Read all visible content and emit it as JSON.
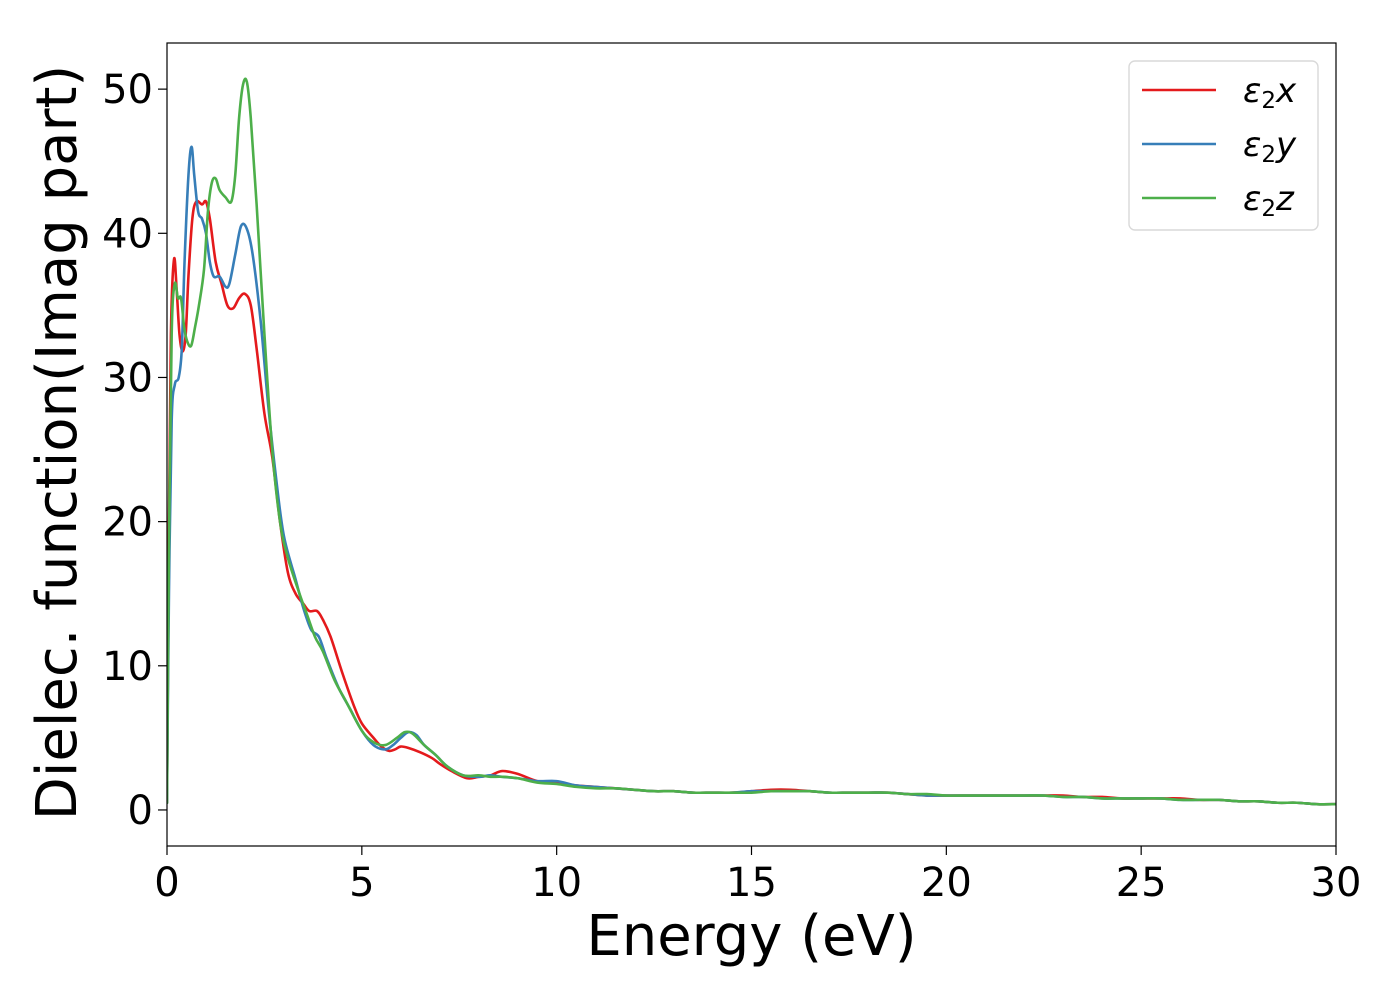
{
  "chart_data": {
    "type": "line",
    "title": "",
    "xlabel": "Energy (eV)",
    "ylabel": "Dielec. function(Imag part)",
    "xlim": [
      0,
      30
    ],
    "ylim": [
      -2.5,
      53.2
    ],
    "xticks": [
      0,
      5,
      10,
      15,
      20,
      25,
      30
    ],
    "yticks": [
      0,
      10,
      20,
      30,
      40,
      50
    ],
    "grid": false,
    "legend_position": "top-right",
    "series": [
      {
        "name": "ε₂x",
        "legend": {
          "base": "ε",
          "sub": "2",
          "var": "x"
        },
        "color": "#e41a1c",
        "points": [
          [
            0,
            0.5
          ],
          [
            0.05,
            20
          ],
          [
            0.1,
            33
          ],
          [
            0.18,
            38.2
          ],
          [
            0.25,
            36
          ],
          [
            0.32,
            33
          ],
          [
            0.4,
            31.8
          ],
          [
            0.48,
            33
          ],
          [
            0.55,
            37
          ],
          [
            0.65,
            41
          ],
          [
            0.75,
            42.2
          ],
          [
            0.9,
            42
          ],
          [
            1.0,
            42.2
          ],
          [
            1.1,
            41
          ],
          [
            1.25,
            38
          ],
          [
            1.4,
            36.5
          ],
          [
            1.55,
            35
          ],
          [
            1.7,
            34.8
          ],
          [
            1.85,
            35.5
          ],
          [
            2.0,
            35.8
          ],
          [
            2.15,
            35
          ],
          [
            2.3,
            32
          ],
          [
            2.5,
            27.5
          ],
          [
            2.7,
            24.5
          ],
          [
            2.9,
            20
          ],
          [
            3.1,
            16.5
          ],
          [
            3.3,
            15
          ],
          [
            3.5,
            14.3
          ],
          [
            3.65,
            13.8
          ],
          [
            3.85,
            13.8
          ],
          [
            4.0,
            13.2
          ],
          [
            4.2,
            12
          ],
          [
            4.5,
            9.5
          ],
          [
            4.8,
            7.2
          ],
          [
            5.0,
            6.0
          ],
          [
            5.3,
            5.0
          ],
          [
            5.5,
            4.4
          ],
          [
            5.7,
            4.1
          ],
          [
            5.85,
            4.2
          ],
          [
            6.0,
            4.4
          ],
          [
            6.2,
            4.3
          ],
          [
            6.5,
            4.0
          ],
          [
            6.8,
            3.6
          ],
          [
            7.0,
            3.2
          ],
          [
            7.3,
            2.7
          ],
          [
            7.7,
            2.2
          ],
          [
            8.0,
            2.3
          ],
          [
            8.3,
            2.4
          ],
          [
            8.6,
            2.7
          ],
          [
            9.0,
            2.5
          ],
          [
            9.5,
            2.0
          ],
          [
            10.0,
            1.9
          ],
          [
            10.5,
            1.7
          ],
          [
            11.0,
            1.6
          ],
          [
            11.5,
            1.5
          ],
          [
            12.0,
            1.4
          ],
          [
            12.5,
            1.3
          ],
          [
            13.0,
            1.3
          ],
          [
            13.5,
            1.2
          ],
          [
            14.0,
            1.2
          ],
          [
            14.5,
            1.2
          ],
          [
            15.0,
            1.3
          ],
          [
            15.5,
            1.4
          ],
          [
            16.0,
            1.4
          ],
          [
            16.5,
            1.3
          ],
          [
            17.0,
            1.2
          ],
          [
            17.5,
            1.2
          ],
          [
            18.0,
            1.2
          ],
          [
            18.5,
            1.2
          ],
          [
            19.0,
            1.1
          ],
          [
            19.5,
            1.0
          ],
          [
            20.0,
            1.0
          ],
          [
            20.5,
            1.0
          ],
          [
            21.0,
            1.0
          ],
          [
            21.5,
            1.0
          ],
          [
            22.0,
            1.0
          ],
          [
            22.5,
            1.0
          ],
          [
            23.0,
            1.0
          ],
          [
            23.5,
            0.9
          ],
          [
            24.0,
            0.9
          ],
          [
            24.5,
            0.8
          ],
          [
            25.0,
            0.8
          ],
          [
            25.5,
            0.8
          ],
          [
            26.0,
            0.8
          ],
          [
            26.5,
            0.7
          ],
          [
            27.0,
            0.7
          ],
          [
            27.5,
            0.6
          ],
          [
            28.0,
            0.6
          ],
          [
            28.5,
            0.5
          ],
          [
            29.0,
            0.5
          ],
          [
            29.5,
            0.4
          ],
          [
            30.0,
            0.4
          ]
        ]
      },
      {
        "name": "ε₂y",
        "legend": {
          "base": "ε",
          "sub": "2",
          "var": "y"
        },
        "color": "#377eb8",
        "points": [
          [
            0,
            0.5
          ],
          [
            0.05,
            15
          ],
          [
            0.12,
            27
          ],
          [
            0.2,
            29.5
          ],
          [
            0.3,
            30
          ],
          [
            0.38,
            32
          ],
          [
            0.45,
            38
          ],
          [
            0.55,
            44
          ],
          [
            0.63,
            46
          ],
          [
            0.7,
            44
          ],
          [
            0.8,
            41.5
          ],
          [
            0.9,
            41
          ],
          [
            1.0,
            40
          ],
          [
            1.1,
            38
          ],
          [
            1.2,
            37
          ],
          [
            1.35,
            37
          ],
          [
            1.5,
            36.3
          ],
          [
            1.6,
            36.5
          ],
          [
            1.75,
            38.5
          ],
          [
            1.9,
            40.5
          ],
          [
            2.05,
            40.3
          ],
          [
            2.2,
            38.5
          ],
          [
            2.4,
            34
          ],
          [
            2.6,
            28
          ],
          [
            2.8,
            23
          ],
          [
            3.0,
            19
          ],
          [
            3.3,
            16
          ],
          [
            3.5,
            14
          ],
          [
            3.7,
            12.5
          ],
          [
            3.9,
            12
          ],
          [
            4.1,
            10.5
          ],
          [
            4.4,
            8.5
          ],
          [
            4.7,
            7.0
          ],
          [
            5.0,
            5.5
          ],
          [
            5.3,
            4.5
          ],
          [
            5.6,
            4.2
          ],
          [
            5.8,
            4.5
          ],
          [
            6.0,
            5.0
          ],
          [
            6.2,
            5.4
          ],
          [
            6.4,
            5.2
          ],
          [
            6.6,
            4.5
          ],
          [
            6.9,
            3.8
          ],
          [
            7.2,
            3.0
          ],
          [
            7.6,
            2.4
          ],
          [
            8.0,
            2.3
          ],
          [
            8.3,
            2.4
          ],
          [
            8.6,
            2.3
          ],
          [
            9.0,
            2.2
          ],
          [
            9.5,
            2.0
          ],
          [
            10.0,
            2.0
          ],
          [
            10.5,
            1.7
          ],
          [
            11.0,
            1.6
          ],
          [
            11.5,
            1.5
          ],
          [
            12.0,
            1.4
          ],
          [
            12.5,
            1.3
          ],
          [
            13.0,
            1.3
          ],
          [
            13.5,
            1.2
          ],
          [
            14.0,
            1.2
          ],
          [
            14.5,
            1.2
          ],
          [
            15.0,
            1.3
          ],
          [
            15.5,
            1.3
          ],
          [
            16.0,
            1.3
          ],
          [
            16.5,
            1.3
          ],
          [
            17.0,
            1.2
          ],
          [
            17.5,
            1.2
          ],
          [
            18.0,
            1.2
          ],
          [
            18.5,
            1.2
          ],
          [
            19.0,
            1.1
          ],
          [
            19.5,
            1.0
          ],
          [
            20.0,
            1.0
          ],
          [
            20.5,
            1.0
          ],
          [
            21.0,
            1.0
          ],
          [
            21.5,
            1.0
          ],
          [
            22.0,
            1.0
          ],
          [
            22.5,
            1.0
          ],
          [
            23.0,
            0.9
          ],
          [
            23.5,
            0.9
          ],
          [
            24.0,
            0.8
          ],
          [
            24.5,
            0.8
          ],
          [
            25.0,
            0.8
          ],
          [
            25.5,
            0.8
          ],
          [
            26.0,
            0.7
          ],
          [
            26.5,
            0.7
          ],
          [
            27.0,
            0.7
          ],
          [
            27.5,
            0.6
          ],
          [
            28.0,
            0.6
          ],
          [
            28.5,
            0.5
          ],
          [
            29.0,
            0.5
          ],
          [
            29.5,
            0.4
          ],
          [
            30.0,
            0.4
          ]
        ]
      },
      {
        "name": "ε₂z",
        "legend": {
          "base": "ε",
          "sub": "2",
          "var": "z"
        },
        "color": "#4daf4a",
        "points": [
          [
            0,
            0.5
          ],
          [
            0.05,
            18
          ],
          [
            0.12,
            33
          ],
          [
            0.2,
            36.5
          ],
          [
            0.28,
            35.5
          ],
          [
            0.36,
            35.5
          ],
          [
            0.44,
            33.5
          ],
          [
            0.52,
            32.5
          ],
          [
            0.62,
            32.2
          ],
          [
            0.72,
            33.5
          ],
          [
            0.82,
            35
          ],
          [
            0.95,
            37.5
          ],
          [
            1.05,
            41.5
          ],
          [
            1.15,
            43.5
          ],
          [
            1.25,
            43.8
          ],
          [
            1.35,
            43
          ],
          [
            1.5,
            42.5
          ],
          [
            1.65,
            42.2
          ],
          [
            1.75,
            44
          ],
          [
            1.85,
            48
          ],
          [
            1.95,
            50.3
          ],
          [
            2.05,
            50.5
          ],
          [
            2.15,
            48
          ],
          [
            2.3,
            42
          ],
          [
            2.5,
            33
          ],
          [
            2.7,
            25
          ],
          [
            2.9,
            20
          ],
          [
            3.1,
            17.5
          ],
          [
            3.4,
            15
          ],
          [
            3.6,
            13.5
          ],
          [
            3.8,
            12
          ],
          [
            4.0,
            11
          ],
          [
            4.3,
            9
          ],
          [
            4.6,
            7.5
          ],
          [
            5.0,
            5.5
          ],
          [
            5.3,
            4.7
          ],
          [
            5.6,
            4.5
          ],
          [
            5.9,
            5.0
          ],
          [
            6.1,
            5.4
          ],
          [
            6.3,
            5.3
          ],
          [
            6.6,
            4.5
          ],
          [
            6.9,
            3.8
          ],
          [
            7.2,
            3.0
          ],
          [
            7.6,
            2.4
          ],
          [
            8.0,
            2.4
          ],
          [
            8.3,
            2.3
          ],
          [
            8.6,
            2.3
          ],
          [
            9.0,
            2.2
          ],
          [
            9.5,
            1.9
          ],
          [
            10.0,
            1.8
          ],
          [
            10.5,
            1.6
          ],
          [
            11.0,
            1.5
          ],
          [
            11.5,
            1.5
          ],
          [
            12.0,
            1.4
          ],
          [
            12.5,
            1.3
          ],
          [
            13.0,
            1.3
          ],
          [
            13.5,
            1.2
          ],
          [
            14.0,
            1.2
          ],
          [
            14.5,
            1.2
          ],
          [
            15.0,
            1.2
          ],
          [
            15.5,
            1.3
          ],
          [
            16.0,
            1.3
          ],
          [
            16.5,
            1.3
          ],
          [
            17.0,
            1.2
          ],
          [
            17.5,
            1.2
          ],
          [
            18.0,
            1.2
          ],
          [
            18.5,
            1.2
          ],
          [
            19.0,
            1.1
          ],
          [
            19.5,
            1.1
          ],
          [
            20.0,
            1.0
          ],
          [
            20.5,
            1.0
          ],
          [
            21.0,
            1.0
          ],
          [
            21.5,
            1.0
          ],
          [
            22.0,
            1.0
          ],
          [
            22.5,
            1.0
          ],
          [
            23.0,
            0.9
          ],
          [
            23.5,
            0.9
          ],
          [
            24.0,
            0.8
          ],
          [
            24.5,
            0.8
          ],
          [
            25.0,
            0.8
          ],
          [
            25.5,
            0.8
          ],
          [
            26.0,
            0.7
          ],
          [
            26.5,
            0.7
          ],
          [
            27.0,
            0.7
          ],
          [
            27.5,
            0.6
          ],
          [
            28.0,
            0.6
          ],
          [
            28.5,
            0.5
          ],
          [
            29.0,
            0.5
          ],
          [
            29.5,
            0.4
          ],
          [
            30.0,
            0.4
          ]
        ]
      }
    ]
  }
}
